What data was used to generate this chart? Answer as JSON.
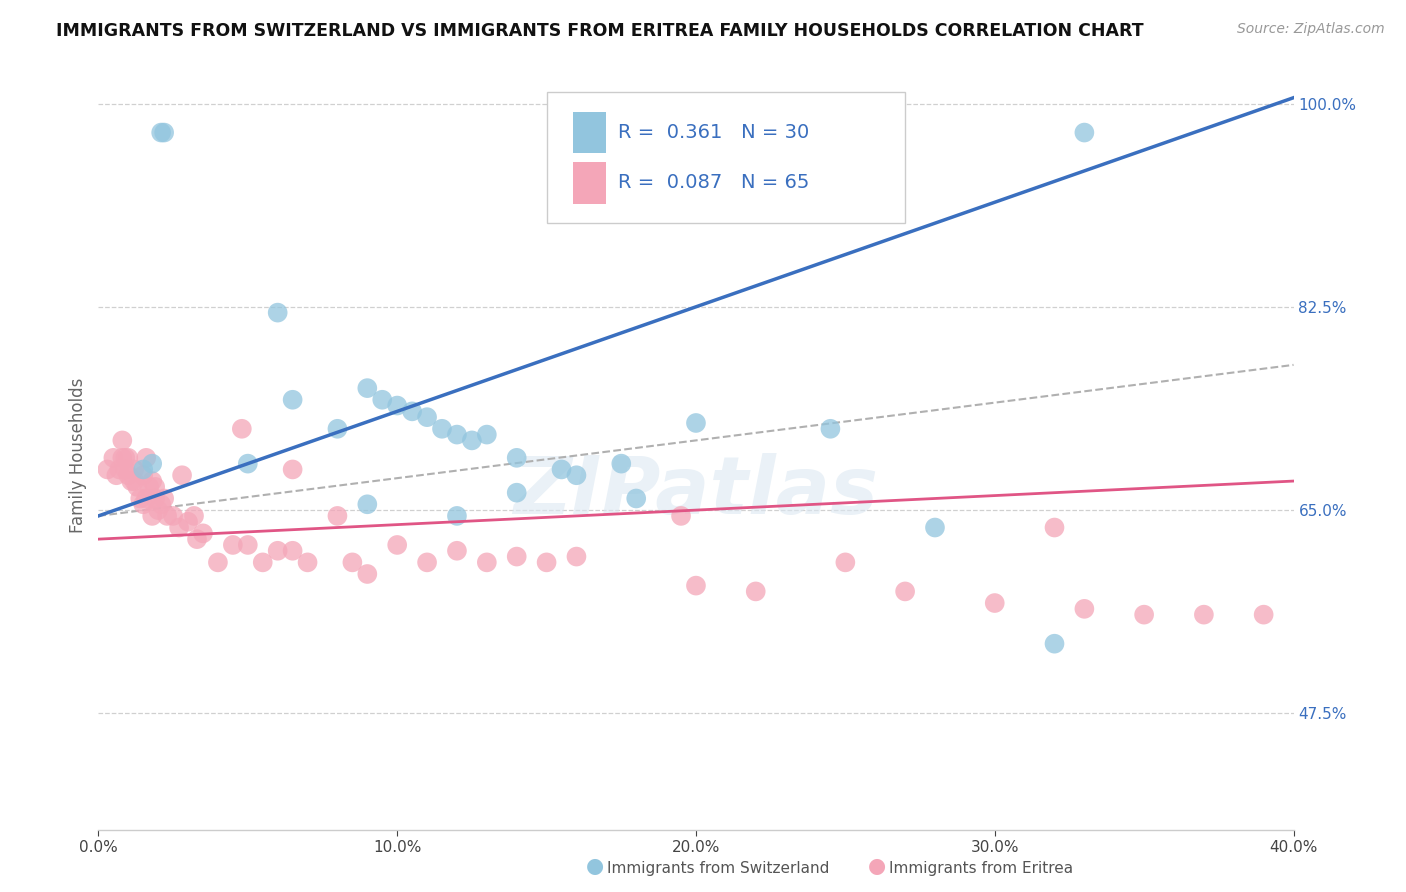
{
  "title": "IMMIGRANTS FROM SWITZERLAND VS IMMIGRANTS FROM ERITREA FAMILY HOUSEHOLDS CORRELATION CHART",
  "source": "Source: ZipAtlas.com",
  "ylabel": "Family Households",
  "legend1_label": "Immigrants from Switzerland",
  "legend2_label": "Immigrants from Eritrea",
  "R1": 0.361,
  "N1": 30,
  "R2": 0.087,
  "N2": 65,
  "xlim": [
    0.0,
    0.4
  ],
  "ylim": [
    0.375,
    1.02
  ],
  "color_blue": "#92c5de",
  "color_pink": "#f4a6b8",
  "color_line_blue": "#3a6fbf",
  "color_line_pink": "#e05585",
  "color_line_gray": "#b0b0b0",
  "background": "#ffffff",
  "blue_scatter_x": [
    0.021,
    0.022,
    0.06,
    0.09,
    0.095,
    0.1,
    0.105,
    0.11,
    0.115,
    0.12,
    0.125,
    0.13,
    0.14,
    0.155,
    0.16,
    0.175,
    0.2,
    0.245,
    0.28,
    0.32,
    0.015,
    0.018,
    0.05,
    0.09,
    0.12,
    0.14,
    0.18,
    0.33,
    0.08,
    0.065
  ],
  "blue_scatter_y": [
    0.975,
    0.975,
    0.82,
    0.755,
    0.745,
    0.74,
    0.735,
    0.73,
    0.72,
    0.715,
    0.71,
    0.715,
    0.695,
    0.685,
    0.68,
    0.69,
    0.725,
    0.72,
    0.635,
    0.535,
    0.685,
    0.69,
    0.69,
    0.655,
    0.645,
    0.665,
    0.66,
    0.975,
    0.72,
    0.745
  ],
  "pink_scatter_x": [
    0.003,
    0.005,
    0.006,
    0.007,
    0.008,
    0.008,
    0.009,
    0.009,
    0.01,
    0.01,
    0.011,
    0.012,
    0.012,
    0.013,
    0.014,
    0.015,
    0.015,
    0.016,
    0.016,
    0.017,
    0.018,
    0.018,
    0.019,
    0.019,
    0.02,
    0.021,
    0.022,
    0.023,
    0.025,
    0.027,
    0.028,
    0.03,
    0.032,
    0.033,
    0.035,
    0.04,
    0.045,
    0.048,
    0.05,
    0.055,
    0.06,
    0.065,
    0.065,
    0.07,
    0.08,
    0.085,
    0.09,
    0.1,
    0.11,
    0.12,
    0.13,
    0.14,
    0.15,
    0.16,
    0.195,
    0.2,
    0.22,
    0.25,
    0.27,
    0.3,
    0.32,
    0.33,
    0.35,
    0.37,
    0.39
  ],
  "pink_scatter_y": [
    0.685,
    0.695,
    0.68,
    0.685,
    0.71,
    0.695,
    0.685,
    0.695,
    0.68,
    0.695,
    0.675,
    0.675,
    0.685,
    0.67,
    0.66,
    0.655,
    0.68,
    0.66,
    0.695,
    0.67,
    0.645,
    0.675,
    0.66,
    0.67,
    0.65,
    0.655,
    0.66,
    0.645,
    0.645,
    0.635,
    0.68,
    0.64,
    0.645,
    0.625,
    0.63,
    0.605,
    0.62,
    0.72,
    0.62,
    0.605,
    0.615,
    0.615,
    0.685,
    0.605,
    0.645,
    0.605,
    0.595,
    0.62,
    0.605,
    0.615,
    0.605,
    0.61,
    0.605,
    0.61,
    0.645,
    0.585,
    0.58,
    0.605,
    0.58,
    0.57,
    0.635,
    0.565,
    0.56,
    0.56,
    0.56
  ],
  "blue_line_x": [
    0.0,
    0.4
  ],
  "blue_line_y": [
    0.645,
    1.005
  ],
  "pink_line_x": [
    0.0,
    0.4
  ],
  "pink_line_y": [
    0.625,
    0.675
  ],
  "gray_line_x": [
    0.0,
    0.4
  ],
  "gray_line_y": [
    0.645,
    0.775
  ],
  "ytick_vals": [
    1.0,
    0.825,
    0.65,
    0.475
  ],
  "ytick_labels": [
    "100.0%",
    "82.5%",
    "65.0%",
    "47.5%"
  ],
  "xtick_vals": [
    0.0,
    0.1,
    0.2,
    0.3,
    0.4
  ],
  "xtick_labels": [
    "0.0%",
    "10.0%",
    "20.0%",
    "30.0%",
    "40.0%"
  ]
}
